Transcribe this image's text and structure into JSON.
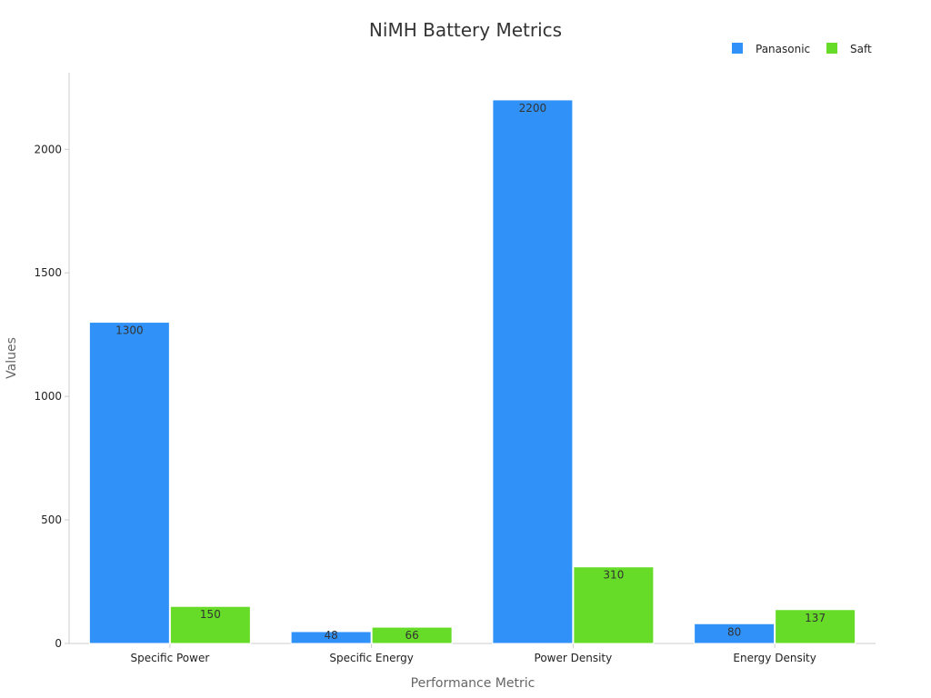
{
  "chart_data": {
    "type": "bar",
    "title": "NiMH Battery Metrics",
    "xlabel": "Performance Metric",
    "ylabel": "Values",
    "categories": [
      "Specific Power",
      "Specific Energy",
      "Power Density",
      "Energy Density"
    ],
    "series": [
      {
        "name": "Panasonic",
        "color": "#3092f8",
        "values": [
          1300,
          48,
          2200,
          80
        ]
      },
      {
        "name": "Saft",
        "color": "#66dc28",
        "values": [
          150,
          66,
          310,
          137
        ]
      }
    ],
    "ylim": [
      0,
      2310
    ],
    "yticks": [
      0,
      500,
      1000,
      1500,
      2000
    ],
    "grid": false,
    "legend": "top-right"
  }
}
